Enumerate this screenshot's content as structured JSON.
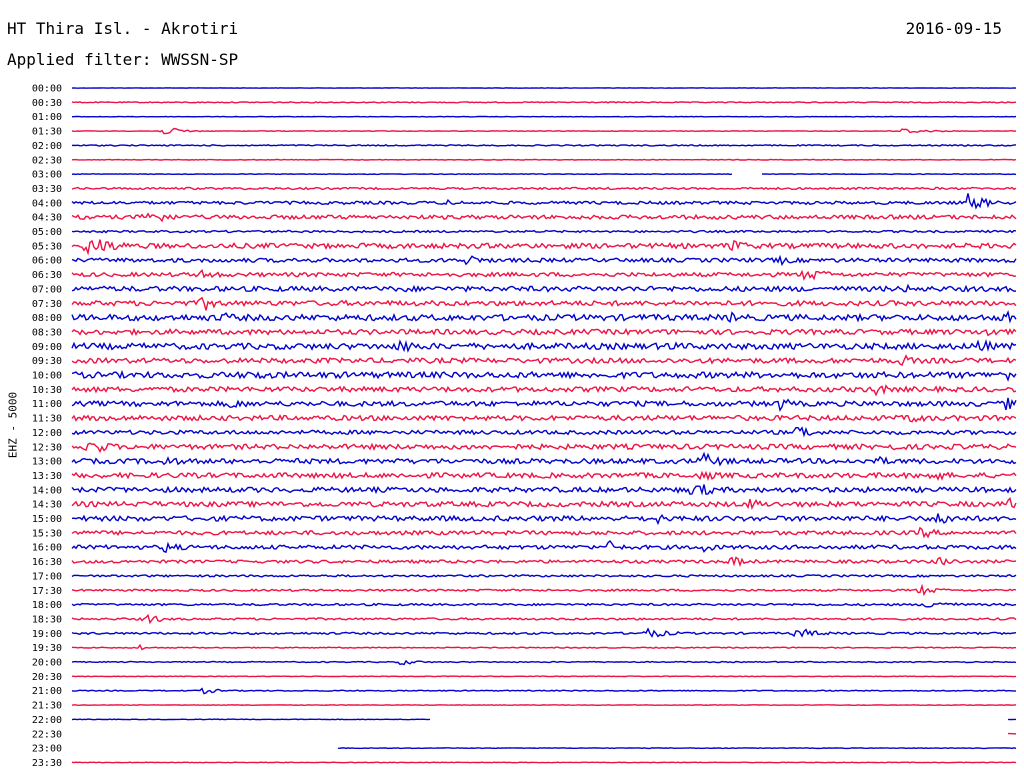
{
  "header": {
    "station": "HT Thira Isl. - Akrotiri",
    "date": "2016-09-15",
    "filter": "Applied filter: WWSSN-SP"
  },
  "channel_label": "EHZ - 5000",
  "chart_data": {
    "type": "line",
    "title": "HT Thira Isl. - Akrotiri",
    "date": "2016-09-15",
    "filter": "WWSSN-SP",
    "ylabel": "EHZ - 5000",
    "xlabel": "",
    "colors": [
      "#0000cc",
      "#ee1144"
    ],
    "row_labels": [
      "00:00",
      "00:30",
      "01:00",
      "01:30",
      "02:00",
      "02:30",
      "03:00",
      "03:30",
      "04:00",
      "04:30",
      "05:00",
      "05:30",
      "06:00",
      "06:30",
      "07:00",
      "07:30",
      "08:00",
      "08:30",
      "09:00",
      "09:30",
      "10:00",
      "10:30",
      "11:00",
      "11:30",
      "12:00",
      "12:30",
      "13:00",
      "13:30",
      "14:00",
      "14:30",
      "15:00",
      "15:30",
      "16:00",
      "16:30",
      "17:00",
      "17:30",
      "18:00",
      "18:30",
      "19:00",
      "19:30",
      "20:00",
      "20:30",
      "21:00",
      "21:30",
      "22:00",
      "22:30",
      "23:00",
      "23:30"
    ],
    "row_noise_level": [
      0.2,
      0.5,
      0.2,
      0.3,
      0.6,
      0.3,
      0.3,
      1.0,
      1.5,
      2.0,
      1.0,
      2.5,
      2.0,
      2.0,
      2.5,
      2.5,
      3.0,
      2.5,
      3.0,
      2.5,
      3.0,
      2.5,
      2.5,
      2.5,
      2.0,
      2.5,
      2.5,
      2.5,
      2.5,
      2.5,
      2.5,
      2.0,
      2.0,
      1.5,
      1.0,
      1.0,
      1.0,
      1.0,
      1.0,
      0.5,
      0.5,
      0.3,
      0.5,
      0.3,
      0.3,
      0.2,
      0.3,
      0.3
    ],
    "events": [
      {
        "row": 3,
        "t": 0.1,
        "amp": 4,
        "dur": 0.03
      },
      {
        "row": 3,
        "t": 0.88,
        "amp": 3,
        "dur": 0.04
      },
      {
        "row": 8,
        "t": 0.4,
        "amp": 3,
        "dur": 0.04
      },
      {
        "row": 8,
        "t": 0.95,
        "amp": 10,
        "dur": 0.03
      },
      {
        "row": 9,
        "t": 0.08,
        "amp": 8,
        "dur": 0.04
      },
      {
        "row": 11,
        "t": 0.02,
        "amp": 10,
        "dur": 0.05
      },
      {
        "row": 11,
        "t": 0.7,
        "amp": 6,
        "dur": 0.04
      },
      {
        "row": 12,
        "t": 0.42,
        "amp": 6,
        "dur": 0.03
      },
      {
        "row": 12,
        "t": 0.75,
        "amp": 5,
        "dur": 0.03
      },
      {
        "row": 13,
        "t": 0.14,
        "amp": 6,
        "dur": 0.03
      },
      {
        "row": 13,
        "t": 0.78,
        "amp": 6,
        "dur": 0.05
      },
      {
        "row": 14,
        "t": 0.35,
        "amp": 4,
        "dur": 0.03
      },
      {
        "row": 14,
        "t": 0.88,
        "amp": 5,
        "dur": 0.03
      },
      {
        "row": 15,
        "t": 0.14,
        "amp": 8,
        "dur": 0.03
      },
      {
        "row": 16,
        "t": 0.16,
        "amp": 6,
        "dur": 0.03
      },
      {
        "row": 16,
        "t": 0.7,
        "amp": 6,
        "dur": 0.03
      },
      {
        "row": 16,
        "t": 0.99,
        "amp": 7,
        "dur": 0.02
      },
      {
        "row": 17,
        "t": 0.97,
        "amp": 7,
        "dur": 0.02
      },
      {
        "row": 18,
        "t": 0.35,
        "amp": 8,
        "dur": 0.03
      },
      {
        "row": 18,
        "t": 0.63,
        "amp": 6,
        "dur": 0.03
      },
      {
        "row": 18,
        "t": 0.96,
        "amp": 8,
        "dur": 0.03
      },
      {
        "row": 19,
        "t": 0.88,
        "amp": 6,
        "dur": 0.03
      },
      {
        "row": 20,
        "t": 0.19,
        "amp": 7,
        "dur": 0.03
      },
      {
        "row": 20,
        "t": 0.99,
        "amp": 8,
        "dur": 0.02
      },
      {
        "row": 21,
        "t": 0.85,
        "amp": 7,
        "dur": 0.03
      },
      {
        "row": 22,
        "t": 0.17,
        "amp": 6,
        "dur": 0.03
      },
      {
        "row": 22,
        "t": 0.75,
        "amp": 8,
        "dur": 0.02
      },
      {
        "row": 22,
        "t": 0.99,
        "amp": 7,
        "dur": 0.03
      },
      {
        "row": 23,
        "t": 0.89,
        "amp": 8,
        "dur": 0.02
      },
      {
        "row": 24,
        "t": 0.77,
        "amp": 10,
        "dur": 0.02
      },
      {
        "row": 25,
        "t": 0.02,
        "amp": 8,
        "dur": 0.04
      },
      {
        "row": 25,
        "t": 0.86,
        "amp": 5,
        "dur": 0.04
      },
      {
        "row": 26,
        "t": 0.1,
        "amp": 6,
        "dur": 0.03
      },
      {
        "row": 26,
        "t": 0.67,
        "amp": 8,
        "dur": 0.04
      },
      {
        "row": 26,
        "t": 0.85,
        "amp": 6,
        "dur": 0.03
      },
      {
        "row": 27,
        "t": 0.67,
        "amp": 5,
        "dur": 0.04
      },
      {
        "row": 27,
        "t": 0.91,
        "amp": 6,
        "dur": 0.04
      },
      {
        "row": 28,
        "t": 0.66,
        "amp": 8,
        "dur": 0.04
      },
      {
        "row": 29,
        "t": 0.72,
        "amp": 6,
        "dur": 0.03
      },
      {
        "row": 29,
        "t": 0.99,
        "amp": 8,
        "dur": 0.02
      },
      {
        "row": 30,
        "t": 0.62,
        "amp": 6,
        "dur": 0.02
      },
      {
        "row": 30,
        "t": 0.92,
        "amp": 8,
        "dur": 0.03
      },
      {
        "row": 31,
        "t": 0.9,
        "amp": 6,
        "dur": 0.03
      },
      {
        "row": 32,
        "t": 0.1,
        "amp": 6,
        "dur": 0.03
      },
      {
        "row": 32,
        "t": 0.57,
        "amp": 7,
        "dur": 0.02
      },
      {
        "row": 32,
        "t": 0.67,
        "amp": 6,
        "dur": 0.02
      },
      {
        "row": 33,
        "t": 0.7,
        "amp": 5,
        "dur": 0.04
      },
      {
        "row": 33,
        "t": 0.92,
        "amp": 5,
        "dur": 0.03
      },
      {
        "row": 35,
        "t": 0.9,
        "amp": 5,
        "dur": 0.03
      },
      {
        "row": 36,
        "t": 0.91,
        "amp": 5,
        "dur": 0.04
      },
      {
        "row": 37,
        "t": 0.08,
        "amp": 5,
        "dur": 0.03
      },
      {
        "row": 38,
        "t": 0.61,
        "amp": 5,
        "dur": 0.04
      },
      {
        "row": 38,
        "t": 0.77,
        "amp": 5,
        "dur": 0.04
      },
      {
        "row": 39,
        "t": 0.07,
        "amp": 5,
        "dur": 0.01
      },
      {
        "row": 40,
        "t": 0.35,
        "amp": 3,
        "dur": 0.03
      },
      {
        "row": 42,
        "t": 0.14,
        "amp": 3,
        "dur": 0.03
      }
    ],
    "gaps": [
      {
        "row": 6,
        "from": 0.7,
        "to": 0.73
      },
      {
        "row": 44,
        "from": 0.38,
        "to": 0.99
      },
      {
        "row": 45,
        "from": 0.0,
        "to": 0.99
      },
      {
        "row": 46,
        "from": 0.0,
        "to": 0.28
      }
    ]
  }
}
